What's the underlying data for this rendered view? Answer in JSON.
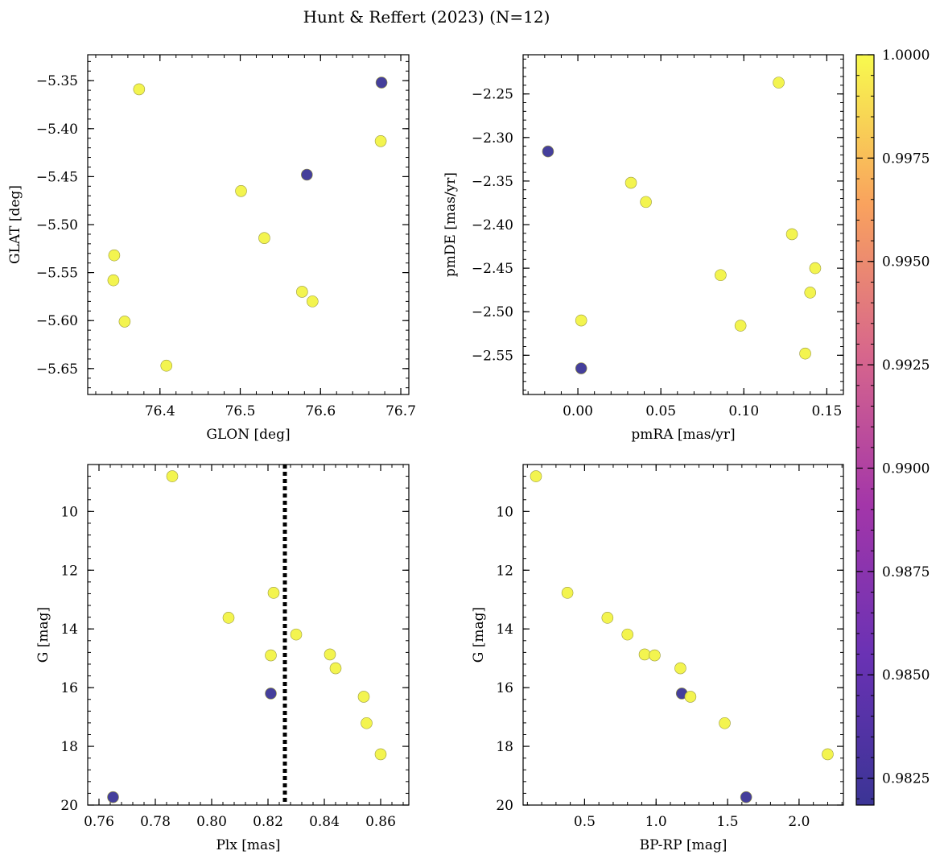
{
  "figure": {
    "title": "Hunt & Reffert (2023) (N=12)"
  },
  "colorbar": {
    "min": 0.98185,
    "max": 1.0,
    "ticks": [
      1.0,
      0.9975,
      0.995,
      0.9925,
      0.99,
      0.9875,
      0.985,
      0.9825
    ],
    "tick_labels": [
      "1.0000",
      "0.9975",
      "0.9950",
      "0.9925",
      "0.9900",
      "0.9875",
      "0.9850",
      "0.9825"
    ],
    "colormap": "plasma"
  },
  "chart_data": [
    {
      "type": "scatter",
      "xlabel": "GLON [deg]",
      "ylabel": "GLAT [deg]",
      "xlim": [
        76.31,
        76.71
      ],
      "ylim": [
        -5.677,
        -5.323
      ],
      "y_inverted": false,
      "xticks": [
        76.4,
        76.5,
        76.6,
        76.7
      ],
      "xtick_labels": [
        "76.4",
        "76.5",
        "76.6",
        "76.7"
      ],
      "yticks": [
        -5.35,
        -5.4,
        -5.45,
        -5.5,
        -5.55,
        -5.6,
        -5.65
      ],
      "ytick_labels": [
        "−5.35",
        "−5.40",
        "−5.45",
        "−5.50",
        "−5.55",
        "−5.60",
        "−5.65"
      ],
      "points": [
        {
          "x": 76.676,
          "y": -5.352,
          "c": 0.9822
        },
        {
          "x": 76.374,
          "y": -5.359,
          "c": 1.0
        },
        {
          "x": 76.675,
          "y": -5.413,
          "c": 1.0
        },
        {
          "x": 76.583,
          "y": -5.448,
          "c": 0.9822
        },
        {
          "x": 76.501,
          "y": -5.465,
          "c": 1.0
        },
        {
          "x": 76.53,
          "y": -5.514,
          "c": 1.0
        },
        {
          "x": 76.343,
          "y": -5.532,
          "c": 1.0
        },
        {
          "x": 76.342,
          "y": -5.558,
          "c": 1.0
        },
        {
          "x": 76.577,
          "y": -5.57,
          "c": 1.0
        },
        {
          "x": 76.59,
          "y": -5.58,
          "c": 1.0
        },
        {
          "x": 76.356,
          "y": -5.601,
          "c": 1.0
        },
        {
          "x": 76.408,
          "y": -5.647,
          "c": 1.0
        }
      ]
    },
    {
      "type": "scatter",
      "xlabel": "pmRA [mas/yr]",
      "ylabel": "pmDE [mas/yr]",
      "xlim": [
        -0.033,
        0.16
      ],
      "ylim": [
        -2.595,
        -2.205
      ],
      "y_inverted": false,
      "xticks": [
        0.0,
        0.05,
        0.1,
        0.15
      ],
      "xtick_labels": [
        "0.00",
        "0.05",
        "0.10",
        "0.15"
      ],
      "yticks": [
        -2.25,
        -2.3,
        -2.35,
        -2.4,
        -2.45,
        -2.5,
        -2.55
      ],
      "ytick_labels": [
        "−2.25",
        "−2.30",
        "−2.35",
        "−2.40",
        "−2.45",
        "−2.50",
        "−2.55"
      ],
      "points": [
        {
          "x": 0.121,
          "y": -2.237,
          "c": 1.0
        },
        {
          "x": -0.018,
          "y": -2.316,
          "c": 0.9822
        },
        {
          "x": 0.032,
          "y": -2.352,
          "c": 1.0
        },
        {
          "x": 0.041,
          "y": -2.374,
          "c": 1.0
        },
        {
          "x": 0.129,
          "y": -2.411,
          "c": 1.0
        },
        {
          "x": 0.143,
          "y": -2.45,
          "c": 1.0
        },
        {
          "x": 0.086,
          "y": -2.458,
          "c": 1.0
        },
        {
          "x": 0.14,
          "y": -2.478,
          "c": 1.0
        },
        {
          "x": 0.002,
          "y": -2.51,
          "c": 1.0
        },
        {
          "x": 0.098,
          "y": -2.516,
          "c": 1.0
        },
        {
          "x": 0.137,
          "y": -2.548,
          "c": 1.0
        },
        {
          "x": 0.002,
          "y": -2.565,
          "c": 0.9822
        }
      ]
    },
    {
      "type": "scatter",
      "xlabel": "Plx [mas]",
      "ylabel": "G [mag]",
      "xlim": [
        0.756,
        0.87
      ],
      "ylim": [
        20.0,
        8.4
      ],
      "y_inverted": true,
      "xticks": [
        0.76,
        0.78,
        0.8,
        0.82,
        0.84,
        0.86
      ],
      "xtick_labels": [
        "0.76",
        "0.78",
        "0.80",
        "0.82",
        "0.84",
        "0.86"
      ],
      "yticks": [
        10,
        12,
        14,
        16,
        18,
        20
      ],
      "ytick_labels": [
        "10",
        "12",
        "14",
        "16",
        "18",
        "20"
      ],
      "vline": {
        "x": 0.826,
        "style": "dotted"
      },
      "points": [
        {
          "x": 0.786,
          "y": 8.8,
          "c": 1.0
        },
        {
          "x": 0.822,
          "y": 12.77,
          "c": 1.0
        },
        {
          "x": 0.806,
          "y": 13.62,
          "c": 1.0
        },
        {
          "x": 0.83,
          "y": 14.19,
          "c": 1.0
        },
        {
          "x": 0.842,
          "y": 14.87,
          "c": 1.0
        },
        {
          "x": 0.821,
          "y": 14.9,
          "c": 1.0
        },
        {
          "x": 0.844,
          "y": 15.34,
          "c": 1.0
        },
        {
          "x": 0.821,
          "y": 16.2,
          "c": 0.9822
        },
        {
          "x": 0.854,
          "y": 16.31,
          "c": 1.0
        },
        {
          "x": 0.855,
          "y": 17.21,
          "c": 1.0
        },
        {
          "x": 0.86,
          "y": 18.27,
          "c": 1.0
        },
        {
          "x": 0.765,
          "y": 19.73,
          "c": 0.9822
        }
      ]
    },
    {
      "type": "scatter",
      "xlabel": "BP-RP [mag]",
      "ylabel": "G [mag]",
      "xlim": [
        0.07,
        2.31
      ],
      "ylim": [
        20.0,
        8.4
      ],
      "y_inverted": true,
      "xticks": [
        0.5,
        1.0,
        1.5,
        2.0
      ],
      "xtick_labels": [
        "0.5",
        "1.0",
        "1.5",
        "2.0"
      ],
      "yticks": [
        10,
        12,
        14,
        16,
        18,
        20
      ],
      "ytick_labels": [
        "10",
        "12",
        "14",
        "16",
        "18",
        "20"
      ],
      "points": [
        {
          "x": 0.16,
          "y": 8.8,
          "c": 1.0
        },
        {
          "x": 0.38,
          "y": 12.77,
          "c": 1.0
        },
        {
          "x": 0.66,
          "y": 13.62,
          "c": 1.0
        },
        {
          "x": 0.8,
          "y": 14.19,
          "c": 1.0
        },
        {
          "x": 0.92,
          "y": 14.87,
          "c": 1.0
        },
        {
          "x": 0.99,
          "y": 14.9,
          "c": 1.0
        },
        {
          "x": 1.17,
          "y": 15.34,
          "c": 1.0
        },
        {
          "x": 1.18,
          "y": 16.2,
          "c": 0.9822
        },
        {
          "x": 1.24,
          "y": 16.31,
          "c": 1.0
        },
        {
          "x": 1.48,
          "y": 17.21,
          "c": 1.0
        },
        {
          "x": 2.2,
          "y": 18.27,
          "c": 1.0
        },
        {
          "x": 1.63,
          "y": 19.73,
          "c": 0.9822
        }
      ]
    }
  ]
}
